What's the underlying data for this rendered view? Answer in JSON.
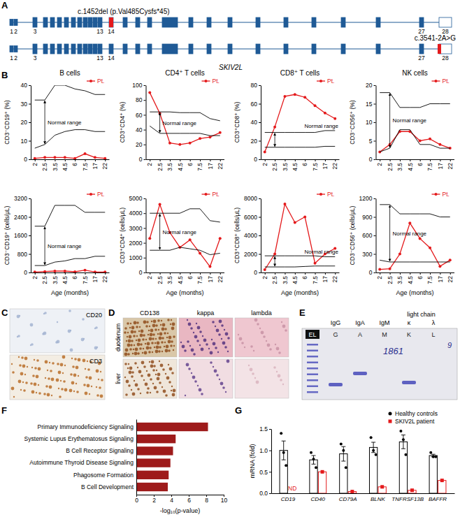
{
  "panel_labels": [
    "A",
    "B",
    "C",
    "D",
    "E",
    "F",
    "G"
  ],
  "gene_diagram": {
    "gene": "SKIV2L",
    "exons": [
      1,
      2,
      3,
      13,
      14,
      27,
      28
    ],
    "variants": [
      {
        "label": "c.1452del (p.Val485Cysfs*45)",
        "exon": 14
      },
      {
        "label": "c.3541-2A>G",
        "exon": 28
      }
    ]
  },
  "chart_data": [
    {
      "type": "line",
      "title": "B cells",
      "y_label": "CD3⁻CD19⁺ (%)",
      "categories": [
        "2",
        "2.5",
        "3.5",
        "4.5",
        "6",
        "7.5",
        "17",
        "22"
      ],
      "ylim": [
        0,
        40
      ],
      "yticks": [
        0,
        10,
        20,
        30,
        40
      ],
      "legend": "upper right",
      "annotations": [
        "Normal range"
      ],
      "series": [
        {
          "name": "Pt.",
          "color": "#e41a1c",
          "marker": "circle",
          "values": [
            0.5,
            1,
            1,
            1,
            0.5,
            3,
            1,
            0.5
          ]
        },
        {
          "color": "#000000",
          "values": [
            32,
            32,
            40,
            40,
            38,
            37,
            35,
            35
          ]
        },
        {
          "color": "#000000",
          "values": [
            6,
            8,
            13,
            15,
            16,
            16,
            15,
            15
          ]
        }
      ]
    },
    {
      "type": "line",
      "title": "CD4⁺ T cells",
      "y_label": "CD3⁺CD4⁺ (%)",
      "categories": [
        "2",
        "2.5",
        "3.5",
        "4.5",
        "6",
        "7.5",
        "17",
        "22"
      ],
      "ylim": [
        0,
        100
      ],
      "yticks": [
        0,
        20,
        40,
        60,
        80,
        100
      ],
      "legend": "upper right",
      "annotations": [
        "Normal range"
      ],
      "series": [
        {
          "name": "Pt.",
          "color": "#e41a1c",
          "marker": "circle",
          "values": [
            90,
            62,
            22,
            20,
            22,
            28,
            30,
            36
          ]
        },
        {
          "color": "#000000",
          "values": [
            64,
            64,
            64,
            63,
            63,
            63,
            55,
            52
          ]
        },
        {
          "color": "#000000",
          "values": [
            45,
            35,
            35,
            35,
            35,
            35,
            32,
            32
          ]
        }
      ]
    },
    {
      "type": "line",
      "title": "CD8⁺ T cells",
      "y_label": "CD3⁺CD8⁺ (%)",
      "categories": [
        "2",
        "2.5",
        "3.5",
        "4.5",
        "6",
        "7.5",
        "17",
        "22"
      ],
      "ylim": [
        0,
        80
      ],
      "yticks": [
        0,
        20,
        40,
        60,
        80
      ],
      "legend": "upper right",
      "annotations": [
        "Normal range"
      ],
      "series": [
        {
          "name": "Pt.",
          "color": "#e41a1c",
          "marker": "circle",
          "values": [
            8,
            35,
            68,
            70,
            67,
            58,
            50,
            44
          ]
        },
        {
          "color": "#000000",
          "values": [
            29,
            29,
            29,
            29,
            29,
            29,
            31,
            31
          ]
        },
        {
          "color": "#000000",
          "values": [
            13,
            13,
            13,
            13,
            13,
            13,
            14,
            14
          ]
        }
      ]
    },
    {
      "type": "line",
      "title": "NK cells",
      "y_label": "CD3⁻CD56⁺ (%)",
      "categories": [
        "2",
        "2.5",
        "3.5",
        "4.5",
        "6",
        "7.5",
        "17",
        "22"
      ],
      "ylim": [
        0,
        20
      ],
      "yticks": [
        0,
        5,
        10,
        15,
        20
      ],
      "legend": "upper right",
      "annotations": [
        "Normal range"
      ],
      "series": [
        {
          "name": "Pt.",
          "color": "#e41a1c",
          "marker": "circle",
          "values": [
            2,
            4,
            7.5,
            7.5,
            5,
            5.5,
            4,
            3
          ]
        },
        {
          "color": "#000000",
          "values": [
            18,
            18,
            14,
            14,
            14,
            15,
            15,
            15
          ]
        },
        {
          "color": "#000000",
          "values": [
            2,
            3,
            8,
            8,
            4,
            4,
            3,
            3
          ]
        }
      ]
    },
    {
      "type": "line",
      "y_label": "CD3⁻CD19⁺ (cells/μL)",
      "x_label": "Age (months)",
      "categories": [
        "2",
        "2.5",
        "3.5",
        "4.5",
        "6",
        "7.5",
        "17",
        "22"
      ],
      "ylim": [
        0,
        3200
      ],
      "yticks": [
        0,
        800,
        1600,
        2400,
        3200
      ],
      "legend": "upper right",
      "annotations": [
        "Normal range"
      ],
      "series": [
        {
          "name": "Pt.",
          "color": "#e41a1c",
          "marker": "circle",
          "values": [
            20,
            40,
            60,
            60,
            30,
            100,
            20,
            20
          ]
        },
        {
          "color": "#000000",
          "values": [
            2000,
            2000,
            2900,
            2900,
            2900,
            2600,
            2600,
            2600
          ]
        },
        {
          "color": "#000000",
          "values": [
            300,
            300,
            450,
            500,
            600,
            600,
            700,
            700
          ]
        }
      ]
    },
    {
      "type": "line",
      "y_label": "CD3⁺CD4⁺ (cells/μL)",
      "x_label": "Age (months)",
      "categories": [
        "2",
        "2.5",
        "3.5",
        "4.5",
        "6",
        "7.5",
        "17",
        "22"
      ],
      "ylim": [
        0,
        5000
      ],
      "yticks": [
        0,
        1000,
        2000,
        3000,
        4000,
        5000
      ],
      "legend": "upper right",
      "annotations": [
        "Normal range"
      ],
      "series": [
        {
          "name": "Pt.",
          "color": "#e41a1c",
          "marker": "circle",
          "values": [
            2300,
            4600,
            2700,
            1700,
            2200,
            1300,
            400,
            2300
          ]
        },
        {
          "color": "#000000",
          "values": [
            4000,
            4000,
            4000,
            4000,
            4300,
            4300,
            3500,
            3400
          ]
        },
        {
          "color": "#000000",
          "values": [
            1500,
            1500,
            1500,
            1700,
            1600,
            1500,
            1200,
            1300
          ]
        }
      ]
    },
    {
      "type": "line",
      "y_label": "CD3⁺CD8⁺ (cells/μL)",
      "x_label": "Age (months)",
      "categories": [
        "2",
        "2.5",
        "3.5",
        "4.5",
        "6",
        "7.5",
        "17",
        "22"
      ],
      "ylim": [
        0,
        8000
      ],
      "yticks": [
        0,
        2000,
        4000,
        6000,
        8000
      ],
      "legend": "upper right",
      "annotations": [
        "Normal range"
      ],
      "series": [
        {
          "name": "Pt.",
          "color": "#e41a1c",
          "marker": "circle",
          "values": [
            300,
            2000,
            7400,
            5400,
            6000,
            1000,
            2000,
            2600
          ]
        },
        {
          "color": "#000000",
          "values": [
            1800,
            1800,
            1800,
            1800,
            1800,
            1800,
            1700,
            1700
          ]
        },
        {
          "color": "#000000",
          "values": [
            600,
            600,
            600,
            600,
            650,
            700,
            700,
            700
          ]
        }
      ]
    },
    {
      "type": "line",
      "y_label": "CD3⁻CD56⁺ (cells/μL)",
      "x_label": "Age (months)",
      "categories": [
        "2",
        "2.5",
        "3.5",
        "4.5",
        "6",
        "7.5",
        "17",
        "22"
      ],
      "ylim": [
        0,
        1200
      ],
      "yticks": [
        0,
        300,
        600,
        900,
        1200
      ],
      "legend": "upper right",
      "annotations": [
        "Normal range"
      ],
      "series": [
        {
          "name": "Pt.",
          "color": "#e41a1c",
          "marker": "circle",
          "values": [
            50,
            60,
            300,
            800,
            550,
            400,
            100,
            200
          ]
        },
        {
          "color": "#000000",
          "values": [
            1100,
            1100,
            950,
            950,
            950,
            950,
            900,
            900
          ]
        },
        {
          "color": "#000000",
          "values": [
            200,
            170,
            170,
            170,
            170,
            170,
            170,
            170
          ]
        }
      ]
    },
    {
      "type": "bar",
      "orientation": "horizontal",
      "categories": [
        "Primary Immunodeficiency Signaling",
        "Systemic Lupus Erythematosus Signaling",
        "B Cell Receptor Signaling",
        "Autoimmune Thyroid Disease Signaling",
        "Phagosome Formation",
        "B Cell Development"
      ],
      "values": [
        8.2,
        4.5,
        4.2,
        3.9,
        3.7,
        3.6
      ],
      "color": "#9e1b1b",
      "xlim": [
        0,
        10
      ],
      "xticks": [
        0,
        2,
        4,
        6,
        8,
        10
      ],
      "x_label": "-log₁₀(p-value)"
    },
    {
      "type": "bar",
      "categories": [
        "CD19",
        "CD40",
        "CD79A",
        "BLNK",
        "TNFRSF13B",
        "BAFFR"
      ],
      "y_label": "mRNA (fold)",
      "ylim": [
        0,
        1.5
      ],
      "yticks": [
        {
          "value": 0,
          "label": "0.0"
        },
        0.5,
        {
          "value": 1,
          "label": "1.0"
        },
        {
          "value": 1.5,
          "label": "1.5"
        }
      ],
      "legend": "upper right",
      "series": [
        {
          "name": "Healthy controls",
          "color": "#000000",
          "marker": "circle",
          "values": [
            1.0,
            0.78,
            0.92,
            1.07,
            1.2,
            0.88
          ],
          "errors": [
            0.22,
            0.1,
            0.17,
            0.12,
            0.16,
            0.03
          ],
          "points": [
            [
              1.4,
              0.95,
              0.65
            ],
            [
              0.95,
              0.8,
              0.6
            ],
            [
              1.15,
              1.0,
              0.6
            ],
            [
              1.3,
              1.0,
              0.9
            ],
            [
              1.45,
              1.25,
              0.9
            ],
            [
              0.95,
              0.85,
              0.85
            ]
          ]
        },
        {
          "name": "SKIV2L patient",
          "color": "#e41a1c",
          "marker": "square",
          "values": [
            null,
            0.5,
            0.04,
            0.15,
            0.07,
            0.3
          ],
          "value_labels": [
            "ND",
            null,
            null,
            null,
            null,
            null
          ]
        }
      ]
    }
  ],
  "micrographs": {
    "C": {
      "stains": [
        "CD20",
        "CD3"
      ]
    },
    "D": {
      "stains": [
        "CD138",
        "kappa",
        "lambda"
      ],
      "tissues": [
        "duodenum",
        "liver"
      ]
    }
  },
  "gel": {
    "lanes": [
      "EL",
      "G",
      "A",
      "M",
      "K",
      "L"
    ],
    "headers": [
      "IgG",
      "IgA",
      "IgM",
      "κ",
      "λ"
    ],
    "light_chain": "light chain",
    "handwriting": [
      "1861",
      "9"
    ]
  }
}
